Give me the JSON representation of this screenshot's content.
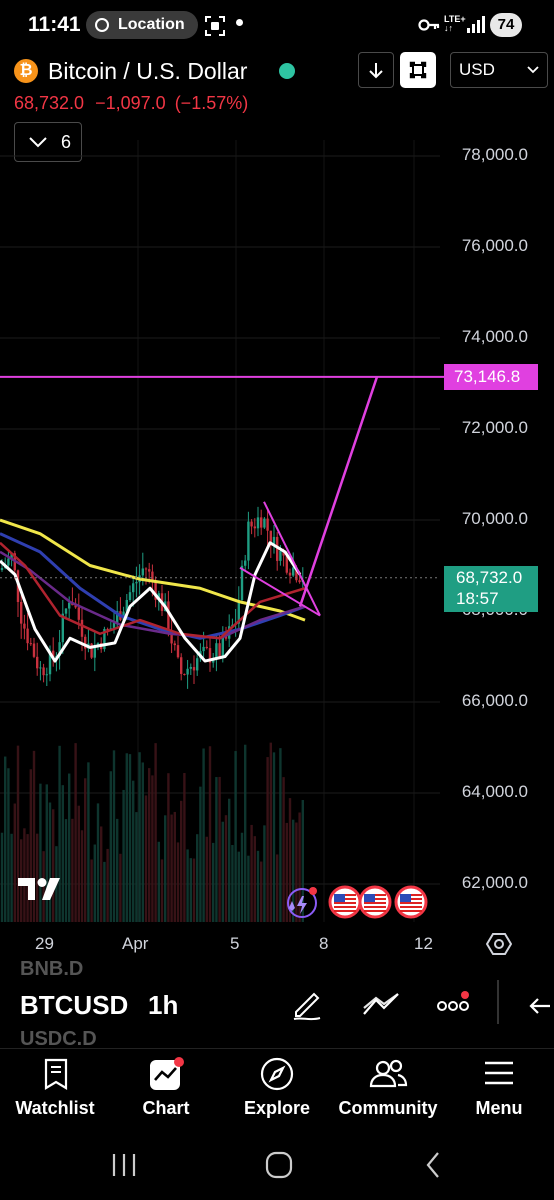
{
  "status_bar": {
    "time": "11:41",
    "location_label": "Location",
    "network": "LTE+",
    "battery": "74"
  },
  "header": {
    "title": "Bitcoin / U.S. Dollar",
    "price": "68,732.0",
    "change": "−1,097.0",
    "change_pct": "(−1.57%)",
    "currency": "USD",
    "indicator_count": "6"
  },
  "colors": {
    "accent_pink": "#e040e0",
    "down_red": "#f23645",
    "live_green": "#2ec4a2",
    "yellow_ma": "#f0e64a",
    "last_price_bg": "#1f9e83"
  },
  "chart_data": {
    "type": "line",
    "symbol": "BTCUSD",
    "interval": "1h",
    "y_ticks": [
      "78,000.0",
      "76,000.0",
      "74,000.0",
      "72,000.0",
      "70,000.0",
      "66,000.0",
      "64,000.0",
      "62,000.0"
    ],
    "x_ticks": [
      "29",
      "Apr",
      "5",
      "8",
      "12"
    ],
    "ylim": [
      61500,
      78800
    ],
    "horizontal_line": {
      "value": 73146.8,
      "label": "73,146.8"
    },
    "last_price": {
      "value": 68732.0,
      "label": "68,732.0",
      "countdown": "18:57"
    },
    "grid": true
  },
  "toolbar": {
    "symbol": "BTCUSD",
    "interval": "1h",
    "ghost_above": "BNB.D",
    "ghost_below": "USDC.D"
  },
  "nav": {
    "watchlist": "Watchlist",
    "chart": "Chart",
    "explore": "Explore",
    "community": "Community",
    "menu": "Menu"
  }
}
